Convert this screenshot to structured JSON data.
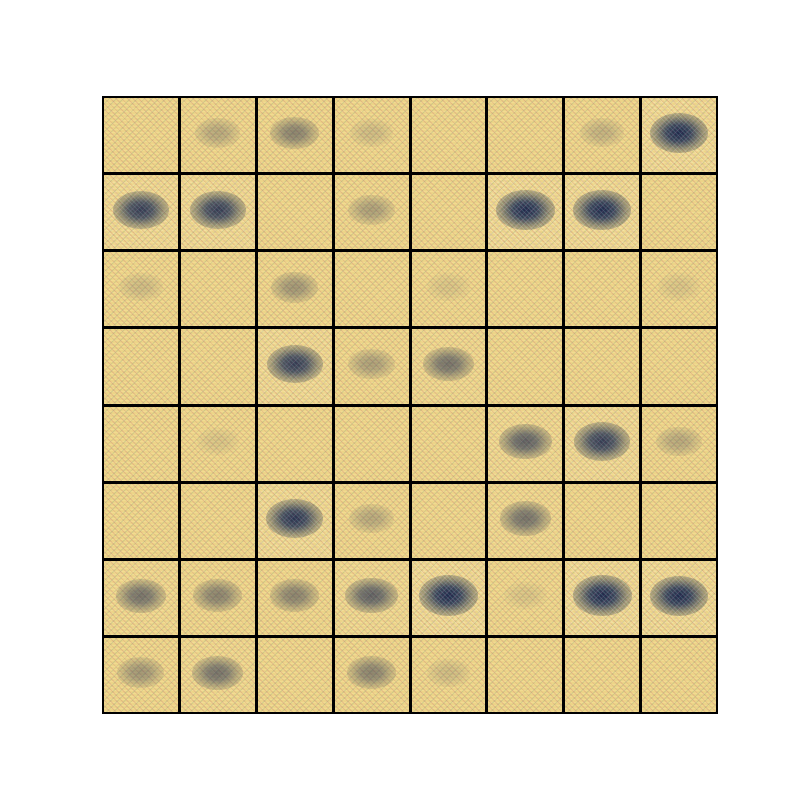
{
  "figure": {
    "background_color": "#ffffff",
    "frame_color": "#000000",
    "tile_base_color": "#ecd488",
    "blob_color": "#1e2d50",
    "rows": 8,
    "columns": 8
  },
  "tiles": [
    [
      0.05,
      0.25,
      0.45,
      0.15,
      0.05,
      0.05,
      0.2,
      0.95
    ],
    [
      0.85,
      0.85,
      0.05,
      0.3,
      0.05,
      1.0,
      0.95,
      0.05
    ],
    [
      0.15,
      0.05,
      0.35,
      0.05,
      0.1,
      0.05,
      0.05,
      0.1
    ],
    [
      0.05,
      0.05,
      0.85,
      0.3,
      0.55,
      0.05,
      0.05,
      0.05
    ],
    [
      0.05,
      0.1,
      0.05,
      0.05,
      0.05,
      0.65,
      0.85,
      0.25
    ],
    [
      0.05,
      0.05,
      0.9,
      0.25,
      0.05,
      0.55,
      0.05,
      0.05
    ],
    [
      0.55,
      0.45,
      0.45,
      0.65,
      1.0,
      0.1,
      1.0,
      0.95
    ],
    [
      0.35,
      0.55,
      0.05,
      0.45,
      0.15,
      0.05,
      0.05,
      0.05
    ]
  ]
}
